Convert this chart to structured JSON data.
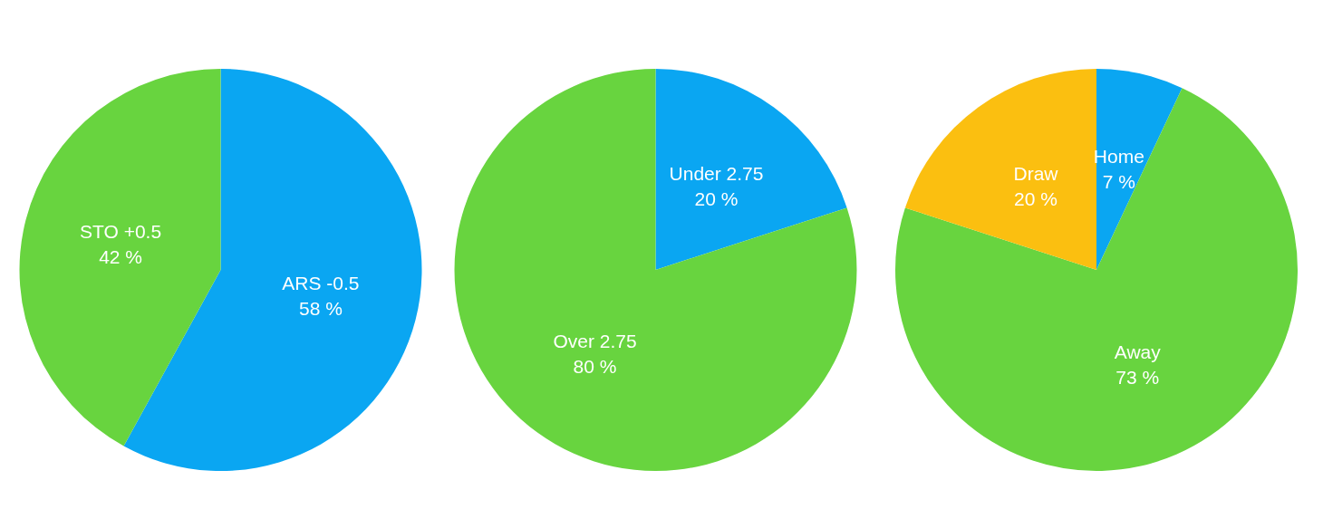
{
  "chart_data": [
    {
      "type": "pie",
      "categories": [
        "ARS -0.5",
        "STO +0.5"
      ],
      "values": [
        58,
        42
      ],
      "value_labels": [
        "58 %",
        "42 %"
      ],
      "colors": [
        "#0aa6f2",
        "#68d43f"
      ]
    },
    {
      "type": "pie",
      "categories": [
        "Under 2.75",
        "Over 2.75"
      ],
      "values": [
        20,
        80
      ],
      "value_labels": [
        "20 %",
        "80 %"
      ],
      "colors": [
        "#0aa6f2",
        "#68d43f"
      ]
    },
    {
      "type": "pie",
      "categories": [
        "Home",
        "Away",
        "Draw"
      ],
      "values": [
        7,
        73,
        20
      ],
      "value_labels": [
        "7 %",
        "73 %",
        "20 %"
      ],
      "colors": [
        "#0aa6f2",
        "#68d43f",
        "#fbbf10"
      ]
    }
  ]
}
